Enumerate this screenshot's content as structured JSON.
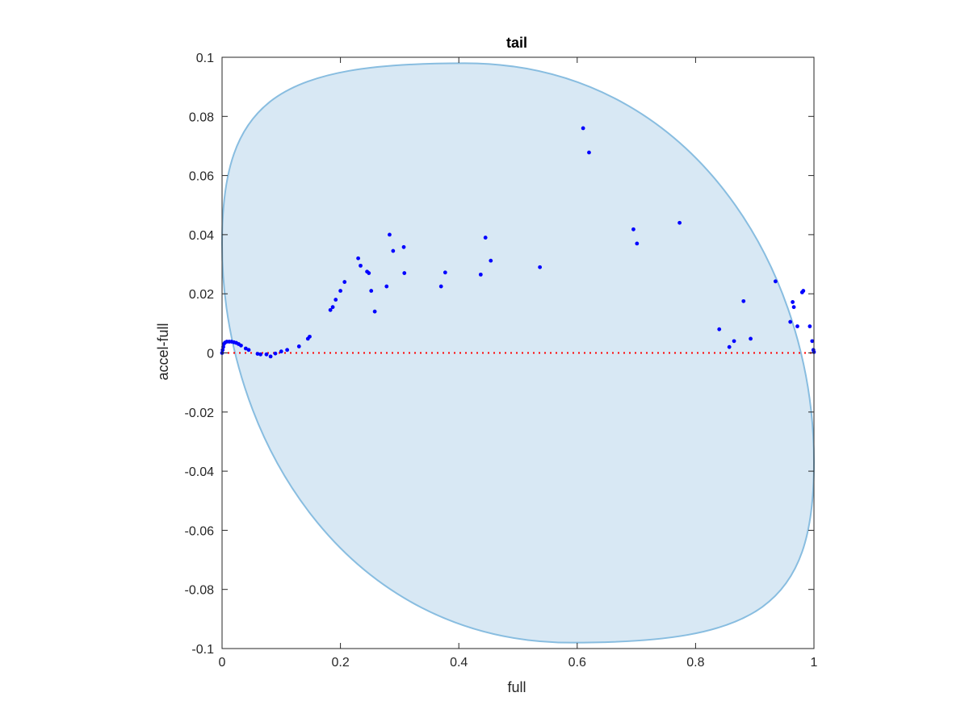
{
  "chart_data": {
    "type": "scatter",
    "title": "tail",
    "xlabel": "full",
    "ylabel": "accel-full",
    "xlim": [
      0,
      1
    ],
    "ylim": [
      -0.1,
      0.1
    ],
    "x_ticks": [
      "0",
      "0.2",
      "0.4",
      "0.6",
      "0.8",
      "1"
    ],
    "y_ticks": [
      "0.1",
      "0.08",
      "0.06",
      "0.04",
      "0.02",
      "0",
      "-0.02",
      "-0.04",
      "-0.06",
      "-0.08",
      "-0.1"
    ],
    "grid": false,
    "reference_line": {
      "y": 0,
      "style": "dotted",
      "color": "#ff0000"
    },
    "region": {
      "shape": "tilted-ellipse",
      "color": "#d8e8f4",
      "edge_color": "#88bde0",
      "top": {
        "x": 0.41,
        "y": 0.098
      },
      "bottom": {
        "x": 0.59,
        "y": -0.098
      },
      "left_top_edge": 0.037,
      "right_bottom_edge": -0.037
    },
    "series": [
      {
        "color": "#0000ff",
        "points": [
          [
            0.0,
            0.0
          ],
          [
            0.001,
            0.001
          ],
          [
            0.002,
            0.002
          ],
          [
            0.003,
            0.003
          ],
          [
            0.005,
            0.0035
          ],
          [
            0.008,
            0.0038
          ],
          [
            0.012,
            0.0038
          ],
          [
            0.016,
            0.0038
          ],
          [
            0.02,
            0.0036
          ],
          [
            0.024,
            0.0034
          ],
          [
            0.028,
            0.003
          ],
          [
            0.032,
            0.0025
          ],
          [
            0.04,
            0.0015
          ],
          [
            0.045,
            0.001
          ],
          [
            0.06,
            -0.0003
          ],
          [
            0.065,
            -0.0005
          ],
          [
            0.075,
            -0.0005
          ],
          [
            0.082,
            -0.0012
          ],
          [
            0.09,
            -0.0002
          ],
          [
            0.1,
            0.0005
          ],
          [
            0.11,
            0.001
          ],
          [
            0.13,
            0.0022
          ],
          [
            0.145,
            0.0048
          ],
          [
            0.148,
            0.0055
          ],
          [
            0.183,
            0.0145
          ],
          [
            0.187,
            0.0155
          ],
          [
            0.192,
            0.018
          ],
          [
            0.2,
            0.021
          ],
          [
            0.207,
            0.024
          ],
          [
            0.23,
            0.032
          ],
          [
            0.234,
            0.0295
          ],
          [
            0.245,
            0.0275
          ],
          [
            0.248,
            0.027
          ],
          [
            0.252,
            0.021
          ],
          [
            0.258,
            0.014
          ],
          [
            0.278,
            0.0225
          ],
          [
            0.283,
            0.04
          ],
          [
            0.289,
            0.0345
          ],
          [
            0.307,
            0.0358
          ],
          [
            0.308,
            0.027
          ],
          [
            0.37,
            0.0225
          ],
          [
            0.377,
            0.0272
          ],
          [
            0.437,
            0.0265
          ],
          [
            0.445,
            0.039
          ],
          [
            0.454,
            0.0312
          ],
          [
            0.537,
            0.029
          ],
          [
            0.61,
            0.076
          ],
          [
            0.62,
            0.0678
          ],
          [
            0.695,
            0.0418
          ],
          [
            0.701,
            0.037
          ],
          [
            0.773,
            0.044
          ],
          [
            0.84,
            0.008
          ],
          [
            0.857,
            0.002
          ],
          [
            0.865,
            0.004
          ],
          [
            0.881,
            0.0175
          ],
          [
            0.893,
            0.0048
          ],
          [
            0.935,
            0.0242
          ],
          [
            0.96,
            0.0105
          ],
          [
            0.964,
            0.0172
          ],
          [
            0.966,
            0.0155
          ],
          [
            0.972,
            0.009
          ],
          [
            0.98,
            0.0205
          ],
          [
            0.982,
            0.021
          ],
          [
            0.993,
            0.009
          ],
          [
            0.997,
            0.004
          ],
          [
            0.999,
            0.001
          ],
          [
            1.0,
            0.0003
          ]
        ]
      }
    ]
  }
}
